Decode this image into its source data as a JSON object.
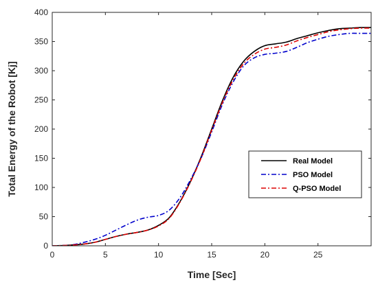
{
  "chart_data": {
    "type": "line",
    "title": "",
    "xlabel": "Time [Sec]",
    "ylabel": "Total Energy of the Robot [Kj]",
    "xlim": [
      0,
      30
    ],
    "ylim": [
      0,
      400
    ],
    "xticks": [
      0,
      5,
      10,
      15,
      20,
      25
    ],
    "yticks": [
      0,
      50,
      100,
      150,
      200,
      250,
      300,
      350,
      400
    ],
    "grid": false,
    "legend_position": "right, lower-middle",
    "series": [
      {
        "name": "Real Model",
        "color": "#000000",
        "dash": "solid",
        "x": [
          0,
          1,
          2,
          3,
          4,
          5,
          6,
          7,
          8,
          9,
          10,
          11,
          12,
          13,
          14,
          15,
          16,
          17,
          18,
          19,
          20,
          21,
          22,
          23,
          24,
          25,
          26,
          27,
          28,
          29,
          30
        ],
        "y": [
          0,
          0.5,
          1.5,
          3,
          6,
          11,
          16,
          20,
          23,
          27,
          35,
          48,
          75,
          110,
          152,
          200,
          248,
          288,
          316,
          333,
          343,
          346,
          349,
          355,
          360,
          365,
          369,
          372,
          373,
          374,
          374
        ]
      },
      {
        "name": "PSO Model",
        "color": "#0000cc",
        "dash": "dashdot",
        "x": [
          0,
          1,
          2,
          3,
          4,
          5,
          6,
          7,
          8,
          9,
          10,
          11,
          12,
          13,
          14,
          15,
          16,
          17,
          18,
          19,
          20,
          21,
          22,
          23,
          24,
          25,
          26,
          27,
          28,
          29,
          30
        ],
        "y": [
          0,
          0.5,
          2,
          6,
          11,
          18,
          27,
          36,
          44,
          49,
          52,
          61,
          82,
          113,
          150,
          195,
          242,
          280,
          308,
          322,
          328,
          330,
          333,
          340,
          348,
          354,
          359,
          362,
          364,
          364,
          364
        ]
      },
      {
        "name": "Q-PSO Model",
        "color": "#dd0000",
        "dash": "dashdot",
        "x": [
          0,
          1,
          2,
          3,
          4,
          5,
          6,
          7,
          8,
          9,
          10,
          11,
          12,
          13,
          14,
          15,
          16,
          17,
          18,
          19,
          20,
          21,
          22,
          23,
          24,
          25,
          26,
          27,
          28,
          29,
          30
        ],
        "y": [
          0,
          0.5,
          1.5,
          3,
          6,
          11,
          16,
          20,
          23,
          27,
          34,
          47,
          74,
          109,
          150,
          198,
          245,
          284,
          312,
          328,
          337,
          340,
          344,
          351,
          357,
          362,
          367,
          370,
          372,
          373,
          373
        ]
      }
    ]
  }
}
